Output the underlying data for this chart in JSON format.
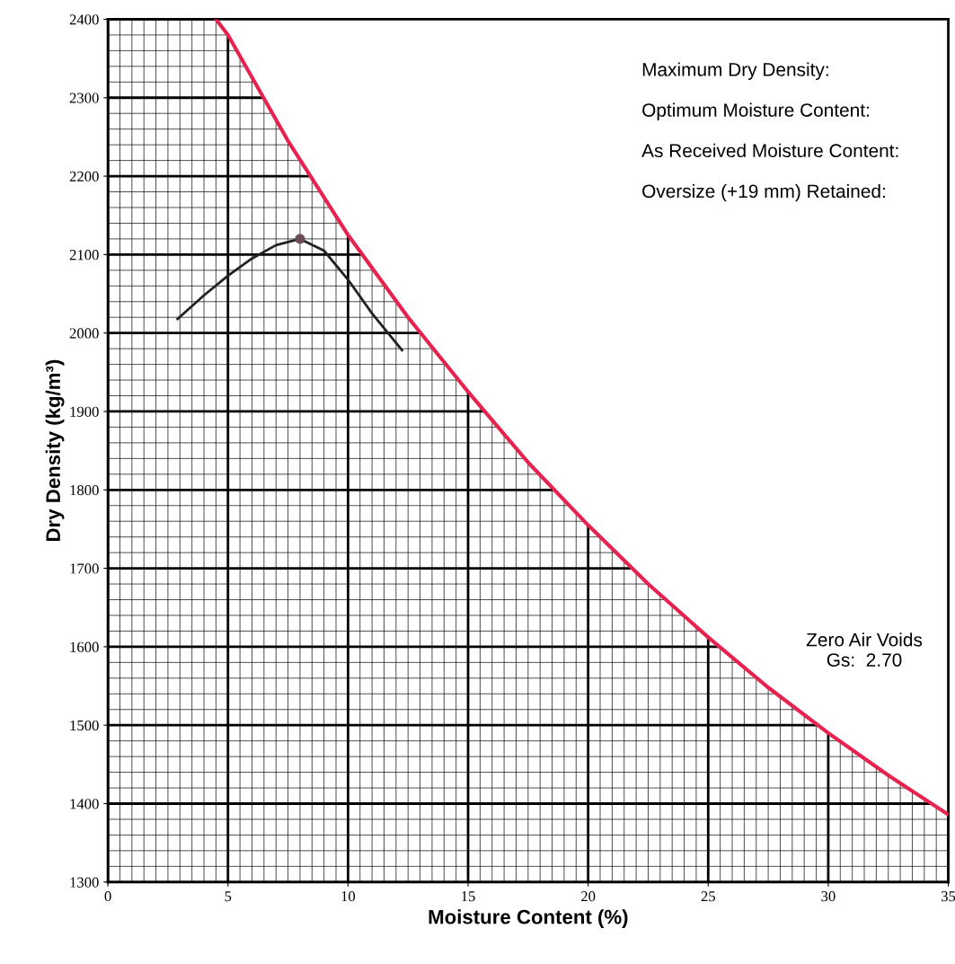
{
  "chart_data": {
    "type": "line",
    "xlabel": "Moisture Content (%)",
    "ylabel": "Dry Density (kg/m³)",
    "xlim": [
      0,
      35
    ],
    "ylim": [
      1300,
      2400
    ],
    "xticks": [
      0,
      5,
      10,
      15,
      20,
      25,
      30,
      35
    ],
    "yticks": [
      1300,
      1400,
      1500,
      1600,
      1700,
      1800,
      1900,
      2000,
      2100,
      2200,
      2300,
      2400
    ],
    "grid": true,
    "legend": false,
    "series": [
      {
        "name": "Zero Air Voids\nGs:  2.70",
        "color": "#e8224e",
        "x": [
          4.5,
          5,
          7.5,
          10,
          12.5,
          15,
          17.5,
          20,
          22.5,
          25,
          27.5,
          30,
          32.5,
          35
        ],
        "values": [
          2400,
          2380,
          2245,
          2125,
          2020,
          1925,
          1835,
          1755,
          1680,
          1612,
          1548,
          1490,
          1436,
          1386
        ]
      },
      {
        "color": "#222222",
        "x": [
          2.9,
          4,
          5,
          6,
          7,
          8,
          9,
          10,
          11,
          12.25
        ],
        "values": [
          2018,
          2048,
          2073,
          2095,
          2112,
          2120,
          2105,
          2068,
          2025,
          1978
        ]
      },
      {
        "type": "scatter",
        "marker": "circle",
        "color": "#6b4b5a",
        "x": [
          8
        ],
        "values": [
          2120
        ]
      }
    ],
    "annotations": [
      "Maximum Dry Density:",
      "Optimum Moisture Content:",
      "As Received Moisture Content:",
      "Oversize (+19 mm) Retained:"
    ]
  }
}
